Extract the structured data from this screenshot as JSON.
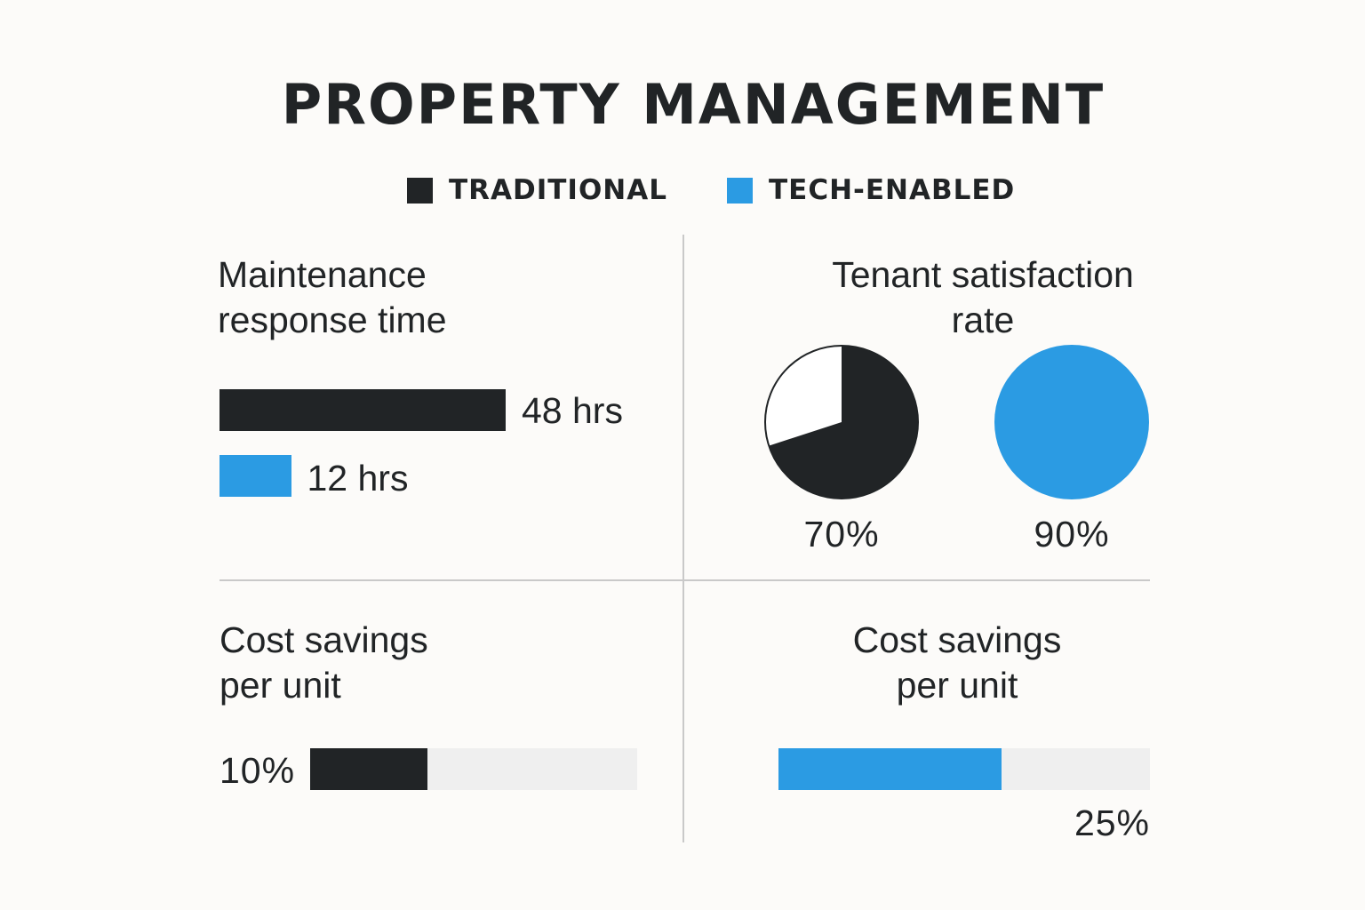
{
  "title": "PROPERTY MANAGEMENT",
  "legend": [
    {
      "label": "TRADITIONAL",
      "color": "#212426"
    },
    {
      "label": "TECH-ENABLED",
      "color": "#2b9be3"
    }
  ],
  "chart_data": [
    {
      "type": "bar",
      "title": "Maintenance response time",
      "title_lines": [
        "Maintenance",
        "response time"
      ],
      "unit": "hrs",
      "categories": [
        "Traditional",
        "Tech-enabled"
      ],
      "values": [
        48,
        12
      ],
      "labels": [
        "48 hrs",
        "12 hrs"
      ],
      "colors": [
        "#212426",
        "#2b9be3"
      ]
    },
    {
      "type": "pie",
      "title": "Tenant satisfaction rate",
      "title_lines": [
        "Tenant satisfaction",
        "rate"
      ],
      "categories": [
        "Traditional",
        "Tech-enabled"
      ],
      "values": [
        70,
        90
      ],
      "labels": [
        "70%",
        "90%"
      ],
      "colors": [
        "#212426",
        "#2b9be3"
      ]
    },
    {
      "type": "bar",
      "title": "Cost savings per unit",
      "title_lines": [
        "Cost savings",
        "per unit"
      ],
      "series": "Traditional",
      "value": 10,
      "label": "10%",
      "color": "#212426"
    },
    {
      "type": "bar",
      "title": "Cost savings per unit",
      "title_lines": [
        "Cost savings",
        "per unit"
      ],
      "series": "Tech-enabled",
      "value": 25,
      "label": "25%",
      "color": "#2b9be3"
    }
  ]
}
